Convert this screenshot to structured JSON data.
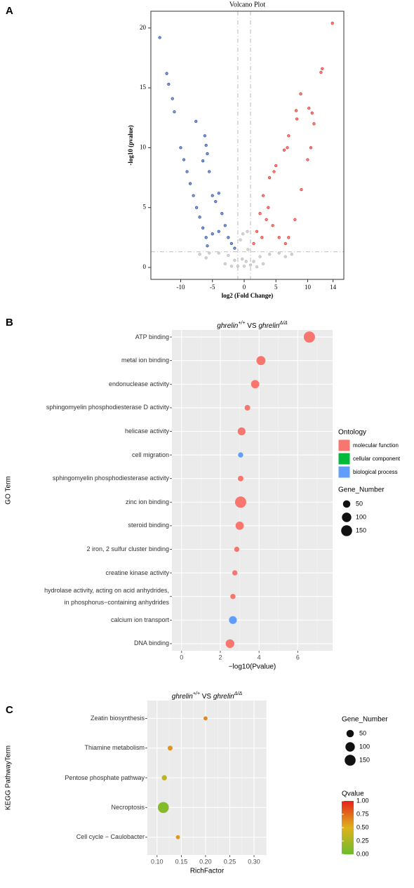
{
  "chart_data": [
    {
      "type": "scatter",
      "panel_label": "A",
      "title": "Volcano Plot",
      "x_label": "log2 (Fold Change)",
      "y_label": "-log10 (pvalue)",
      "xlim": [
        -14.7,
        15.7
      ],
      "ylim": [
        -1,
        21.4
      ],
      "xticks": [
        -10,
        -5,
        0,
        5,
        10,
        14
      ],
      "yticks": [
        0,
        5,
        10,
        15,
        20
      ],
      "threshold_x": [
        -1,
        1
      ],
      "threshold_y": 1.3,
      "series": [
        {
          "color": "#2a52a8",
          "x": [
            -13.3,
            -12.2,
            -11.9,
            -11.3,
            -11,
            -7.6,
            -6.2,
            -6,
            -5.8,
            -6.5,
            -5.5,
            -10,
            -9,
            -8,
            -7,
            -6,
            -5,
            -4.5,
            -4,
            -3.5,
            -3,
            -2.5,
            -2,
            -1.5,
            -4,
            -5,
            -9.5,
            -8.5,
            -7.5,
            -6.5,
            -5.8
          ],
          "values": [
            19.2,
            16.2,
            15.3,
            14.1,
            13,
            12.2,
            11,
            10.2,
            9.5,
            8.9,
            8,
            10,
            8,
            6,
            4.2,
            2.5,
            6,
            5.5,
            6.2,
            4.5,
            3.5,
            2.5,
            2,
            1.6,
            3,
            2.8,
            9,
            7,
            5,
            3.3,
            1.8
          ]
        },
        {
          "color": "#e8332d",
          "x": [
            13.9,
            12.3,
            12.1,
            8.9,
            10.2,
            10.7,
            11,
            8.2,
            8.3,
            7,
            6.8,
            6.3,
            5,
            4.7,
            4,
            3,
            2.5,
            2,
            1.5,
            3.5,
            4.5,
            5.5,
            6.5,
            7,
            8,
            9,
            10,
            10.5,
            3.8,
            2.8
          ],
          "values": [
            20.4,
            16.6,
            16.3,
            14.5,
            13.3,
            12.9,
            12,
            13.1,
            12.4,
            11,
            10,
            9.8,
            8.5,
            8,
            7.5,
            6,
            4.5,
            3,
            2,
            4,
            3.5,
            2.5,
            2,
            2.5,
            4,
            6.5,
            9,
            10,
            5,
            2.5
          ]
        },
        {
          "color": "#b9b9b9",
          "x": [
            0,
            0.3,
            -0.3,
            0.6,
            -0.6,
            0.5,
            -0.2,
            1.5,
            -1.5,
            2.5,
            -2.5,
            3,
            -3,
            4,
            -4,
            5.5,
            -5.5,
            6.5,
            -6,
            -7,
            7.5,
            1,
            -1,
            2,
            -2
          ],
          "values": [
            0.1,
            0.5,
            0.7,
            1.5,
            2.3,
            3,
            2.8,
            0.5,
            0.6,
            0.9,
            1,
            0.3,
            0.3,
            1.1,
            1.2,
            1.2,
            1.2,
            0.9,
            0.8,
            1.1,
            1.1,
            0.2,
            0.1,
            0.05,
            0.1
          ]
        }
      ]
    },
    {
      "type": "bubble",
      "panel_label": "B",
      "title_parts": [
        {
          "text": "ghrelin",
          "style": "italic"
        },
        {
          "text": "+/+",
          "style": "sup"
        },
        {
          "text": " VS ",
          "style": "normal"
        },
        {
          "text": "ghrelin",
          "style": "italic"
        },
        {
          "text": "Δ/Δ",
          "style": "sup"
        }
      ],
      "x_label": "−log10(Pvalue)",
      "y_label": "GO Term",
      "categories": [
        "ATP binding",
        "metal ion binding",
        "endonuclease activity",
        "sphingomyelin phosphodiesterase D activity",
        "helicase activity",
        "cell migration",
        "sphingomyelin phosphodiesterase activity",
        "zinc ion binding",
        "steroid binding",
        "2 iron, 2 sulfur cluster binding",
        "creatine kinase activity",
        "hydrolase activity, acting on acid anhydrides,\nin phosphorus−containing anhydrides",
        "calcium ion transport",
        "DNA binding"
      ],
      "xlim": [
        -0.5,
        7.8
      ],
      "xticks": [
        0,
        2,
        4,
        6
      ],
      "grid": true,
      "legend_title": "Ontology",
      "series": [
        {
          "name": "molecular function",
          "color": "#f8766d",
          "values": [
            6.6,
            4.1,
            3.8,
            3.4,
            3.1,
            null,
            3.05,
            3.05,
            3.0,
            2.85,
            2.75,
            2.65,
            null,
            2.5
          ],
          "sizes": [
            160,
            90,
            70,
            20,
            60,
            null,
            20,
            160,
            70,
            15,
            15,
            15,
            null,
            80
          ]
        },
        {
          "name": "cellular component",
          "color": "#00ba38",
          "values": [
            null,
            null,
            null,
            null,
            null,
            null,
            null,
            null,
            null,
            null,
            null,
            null,
            null,
            null
          ],
          "sizes": [
            null,
            null,
            null,
            null,
            null,
            null,
            null,
            null,
            null,
            null,
            null,
            null,
            null,
            null
          ]
        },
        {
          "name": "biological process",
          "color": "#619cff",
          "values": [
            null,
            null,
            null,
            null,
            null,
            3.05,
            null,
            null,
            null,
            null,
            null,
            null,
            2.65,
            null
          ],
          "sizes": [
            null,
            null,
            null,
            null,
            null,
            15,
            null,
            null,
            null,
            null,
            null,
            null,
            60,
            null
          ]
        }
      ],
      "size_title": "Gene_Number",
      "size_ticks": [
        50,
        100,
        150
      ]
    },
    {
      "type": "bubble",
      "panel_label": "C",
      "title_parts": [
        {
          "text": "ghrelin",
          "style": "italic"
        },
        {
          "text": "+/+",
          "style": "sup"
        },
        {
          "text": " VS ",
          "style": "normal"
        },
        {
          "text": "ghrelin",
          "style": "italic"
        },
        {
          "text": "Δ/Δ",
          "style": "sup"
        }
      ],
      "x_label": "RichFactor",
      "y_label": "KEGG PathwayTerm",
      "categories": [
        "Zeatin biosynthesis",
        "Thiamine metabolism",
        "Pentose phosphate pathway",
        "Necroptosis",
        "Cell cycle − Caulobacter"
      ],
      "xlim": [
        0.08,
        0.326
      ],
      "xticks": [
        {
          "value": 0.1,
          "label": "0.10"
        },
        {
          "value": 0.15,
          "label": "0.15"
        },
        {
          "value": 0.2,
          "label": "0.20"
        },
        {
          "value": 0.25,
          "label": "0.25"
        },
        {
          "value": 0.3,
          "label": "0.30"
        }
      ],
      "grid": true,
      "series": [
        {
          "values": [
            0.2,
            0.127,
            0.115,
            0.113,
            0.143
          ],
          "sizes": [
            5,
            12,
            15,
            150,
            5
          ],
          "qvalues": [
            0.65,
            0.6,
            0.35,
            0.1,
            0.6
          ]
        }
      ],
      "size_title": "Gene_Number",
      "size_ticks": [
        50,
        100,
        150
      ],
      "color_title": "Qvalue",
      "clim": [
        0,
        1
      ],
      "cticks": [
        {
          "value": 0,
          "label": "0.00"
        },
        {
          "value": 0.25,
          "label": "0.25"
        },
        {
          "value": 0.5,
          "label": "0.50"
        },
        {
          "value": 0.75,
          "label": "0.75"
        },
        {
          "value": 1,
          "label": "1.00"
        }
      ],
      "colorscale": [
        "#6cbd2c",
        "#e0b21b",
        "#e4231c"
      ]
    }
  ]
}
